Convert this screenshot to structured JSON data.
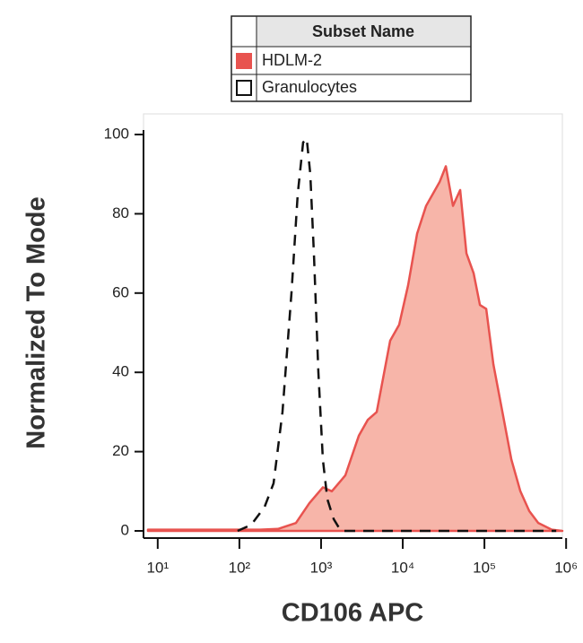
{
  "chart_data": {
    "type": "histogram-overlay",
    "legend_title": "Subset Name",
    "xlabel": "CD106 APC",
    "ylabel": "Normalized To Mode",
    "xscale": "log",
    "xlim": [
      6.7,
      900000
    ],
    "ylim": [
      0,
      100
    ],
    "xticks": [
      {
        "value": 10,
        "label": "10¹"
      },
      {
        "value": 100,
        "label": "10²"
      },
      {
        "value": 1000,
        "label": "10³"
      },
      {
        "value": 10000,
        "label": "10⁴"
      },
      {
        "value": 100000,
        "label": "10⁵"
      },
      {
        "value": 1000000,
        "label": "10⁶"
      }
    ],
    "yticks": [
      0,
      20,
      40,
      60,
      80,
      100
    ],
    "series": [
      {
        "name": "HDLM-2",
        "color": "#e8534f",
        "fill": "#f7b5a9",
        "style": "filled",
        "x": [
          7.6,
          65,
          179,
          297,
          492,
          719,
          1052,
          1355,
          1981,
          2897,
          3727,
          4800,
          7015,
          9036,
          11640,
          14990,
          19310,
          24870,
          28230,
          33690,
          41210,
          50470,
          60260,
          73790,
          88100,
          105200,
          128800,
          166000,
          213800,
          275400,
          354000,
          456000,
          667000,
          900000
        ],
        "values": [
          0.3,
          0.3,
          0.3,
          0.5,
          2,
          7,
          11,
          10,
          14,
          24,
          28,
          30,
          48,
          52,
          62,
          75,
          82,
          86,
          88,
          92,
          82,
          86,
          70,
          65,
          57,
          56,
          42,
          30,
          18,
          10,
          5,
          2,
          0.3,
          0
        ]
      },
      {
        "name": "Granulocytes",
        "color": "#111111",
        "style": "dashed",
        "x": [
          95,
          139,
          203,
          262,
          337,
          434,
          518,
          603,
          667,
          738,
          817,
          927,
          1052,
          1194,
          1426,
          1746,
          756800
        ],
        "values": [
          0,
          1.5,
          6,
          12,
          30,
          60,
          85,
          98,
          99,
          90,
          70,
          40,
          18,
          8,
          3,
          0,
          0
        ]
      }
    ]
  }
}
